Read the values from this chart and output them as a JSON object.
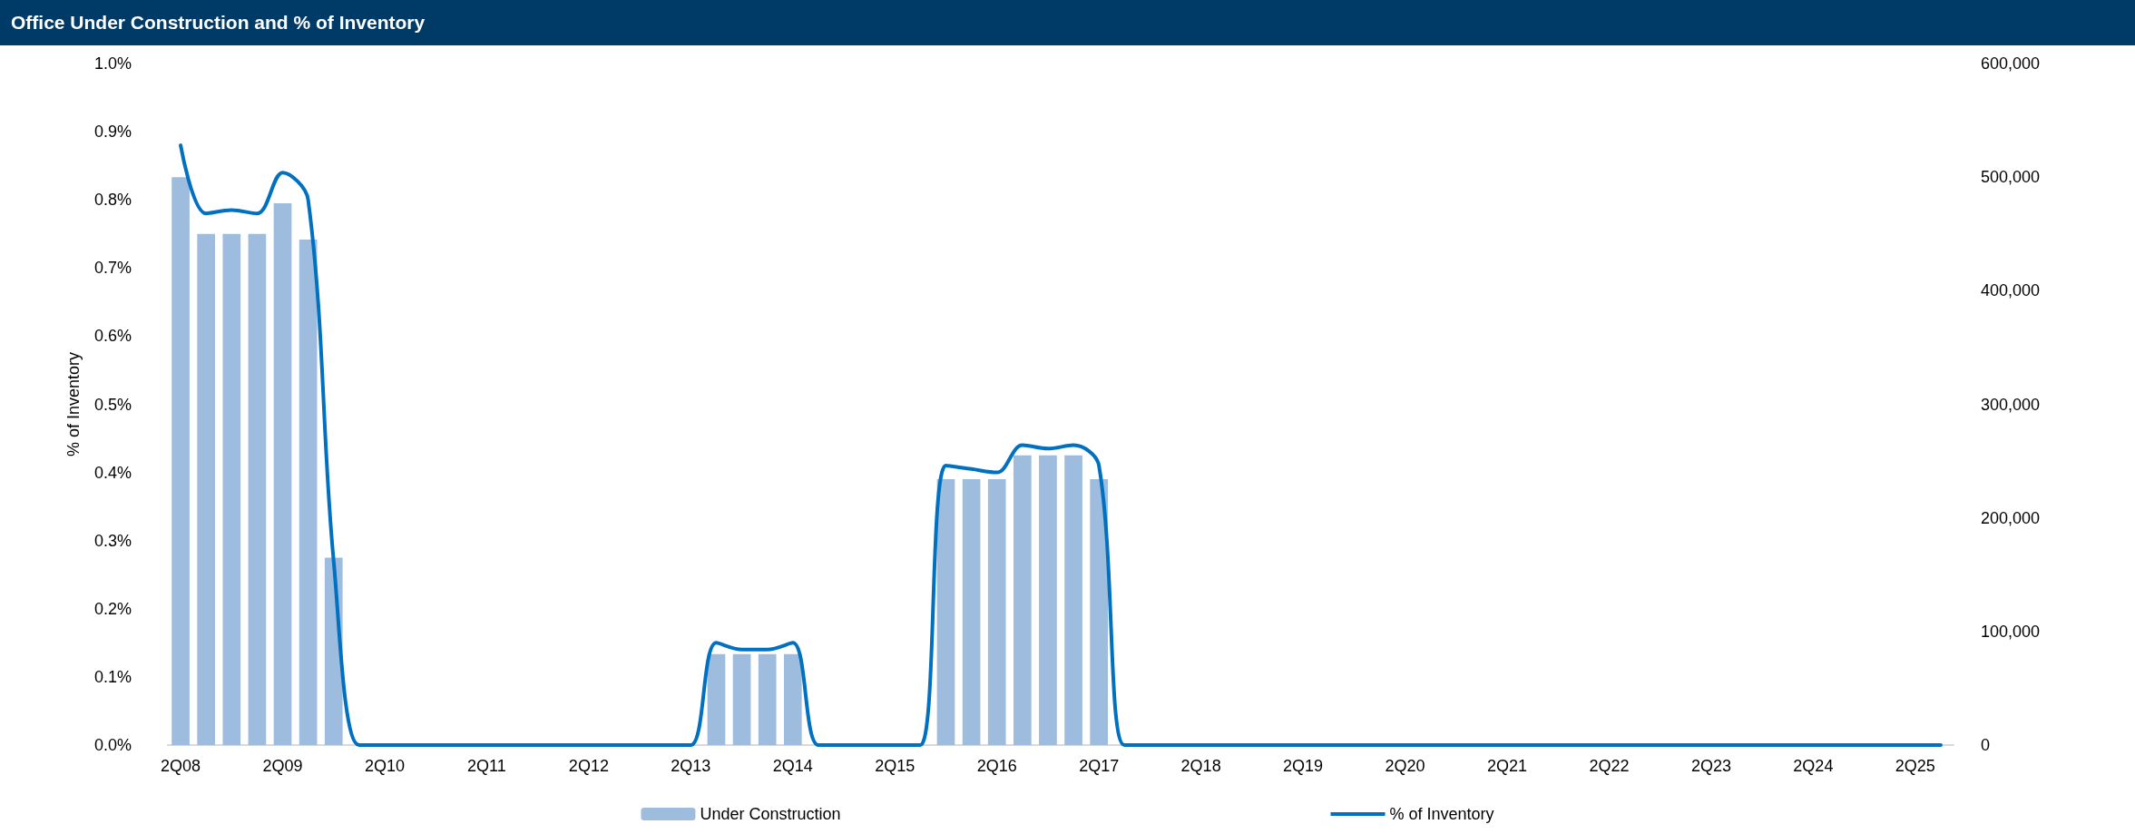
{
  "chart_data": {
    "type": "bar",
    "title": "Office Under Construction and % of Inventory",
    "ylabel": "% of Inventory",
    "categories": [
      "2Q08",
      null,
      null,
      null,
      "2Q09",
      null,
      null,
      null,
      "2Q10",
      null,
      null,
      null,
      "2Q11",
      null,
      null,
      null,
      "2Q12",
      null,
      null,
      null,
      "2Q13",
      null,
      null,
      null,
      "2Q14",
      null,
      null,
      null,
      "2Q15",
      null,
      null,
      null,
      "2Q16",
      null,
      null,
      null,
      "2Q17",
      null,
      null,
      null,
      "2Q18",
      null,
      null,
      null,
      "2Q19",
      null,
      null,
      null,
      "2Q20",
      null,
      null,
      null,
      "2Q21",
      null,
      null,
      null,
      "2Q22",
      null,
      null,
      null,
      "2Q23",
      null,
      null,
      null,
      "2Q24",
      null,
      null,
      null,
      "2Q25",
      null
    ],
    "series": [
      {
        "name": "Under Construction",
        "axis": "y2",
        "color": "#9dbcde",
        "values": [
          500000,
          450000,
          450000,
          450000,
          477000,
          445000,
          165000,
          0,
          0,
          0,
          0,
          0,
          0,
          0,
          0,
          0,
          0,
          0,
          0,
          0,
          0,
          80000,
          80000,
          80000,
          80000,
          0,
          0,
          0,
          0,
          0,
          234000,
          234000,
          234000,
          255000,
          255000,
          255000,
          234000,
          0,
          0,
          0,
          0,
          0,
          0,
          0,
          0,
          0,
          0,
          0,
          0,
          0,
          0,
          0,
          0,
          0,
          0,
          0,
          0,
          0,
          0,
          0,
          0,
          0,
          0,
          0,
          0,
          0,
          0,
          0,
          0,
          0
        ]
      },
      {
        "name": "% of Inventory",
        "type": "line",
        "color": "#0070c0",
        "marker": "none",
        "values": [
          0.88,
          0.78,
          0.785,
          0.78,
          0.84,
          0.8,
          0.27,
          0,
          0,
          0,
          0,
          0,
          0,
          0,
          0,
          0,
          0,
          0,
          0,
          0,
          0,
          0.15,
          0.14,
          0.14,
          0.15,
          0,
          0,
          0,
          0,
          0,
          0.41,
          0.405,
          0.4,
          0.44,
          0.435,
          0.44,
          0.41,
          0,
          0,
          0,
          0,
          0,
          0,
          0,
          0,
          0,
          0,
          0,
          0,
          0,
          0,
          0,
          0,
          0,
          0,
          0,
          0,
          0,
          0,
          0,
          0,
          0,
          0,
          0,
          0,
          0,
          0,
          0,
          0,
          0
        ]
      }
    ],
    "ylim": [
      0,
      1
    ],
    "yticks": [
      {
        "value": 0,
        "label": "0.0%"
      },
      {
        "value": 0.1,
        "label": "0.1%"
      },
      {
        "value": 0.2,
        "label": "0.2%"
      },
      {
        "value": 0.3,
        "label": "0.3%"
      },
      {
        "value": 0.4,
        "label": "0.4%"
      },
      {
        "value": 0.5,
        "label": "0.5%"
      },
      {
        "value": 0.6,
        "label": "0.6%"
      },
      {
        "value": 0.7,
        "label": "0.7%"
      },
      {
        "value": 0.8,
        "label": "0.8%"
      },
      {
        "value": 0.9,
        "label": "0.9%"
      },
      {
        "value": 1,
        "label": "1.0%"
      }
    ],
    "y2lim": [
      0,
      600000
    ],
    "y2ticks": [
      0,
      {
        "value": 100000,
        "label": "100,000"
      },
      {
        "value": 200000,
        "label": "200,000"
      },
      {
        "value": 300000,
        "label": "300,000"
      },
      {
        "value": 400000,
        "label": "400,000"
      },
      {
        "value": 500000,
        "label": "500,000"
      },
      {
        "value": 600000,
        "label": "600,000"
      }
    ],
    "legend": "bottom"
  }
}
